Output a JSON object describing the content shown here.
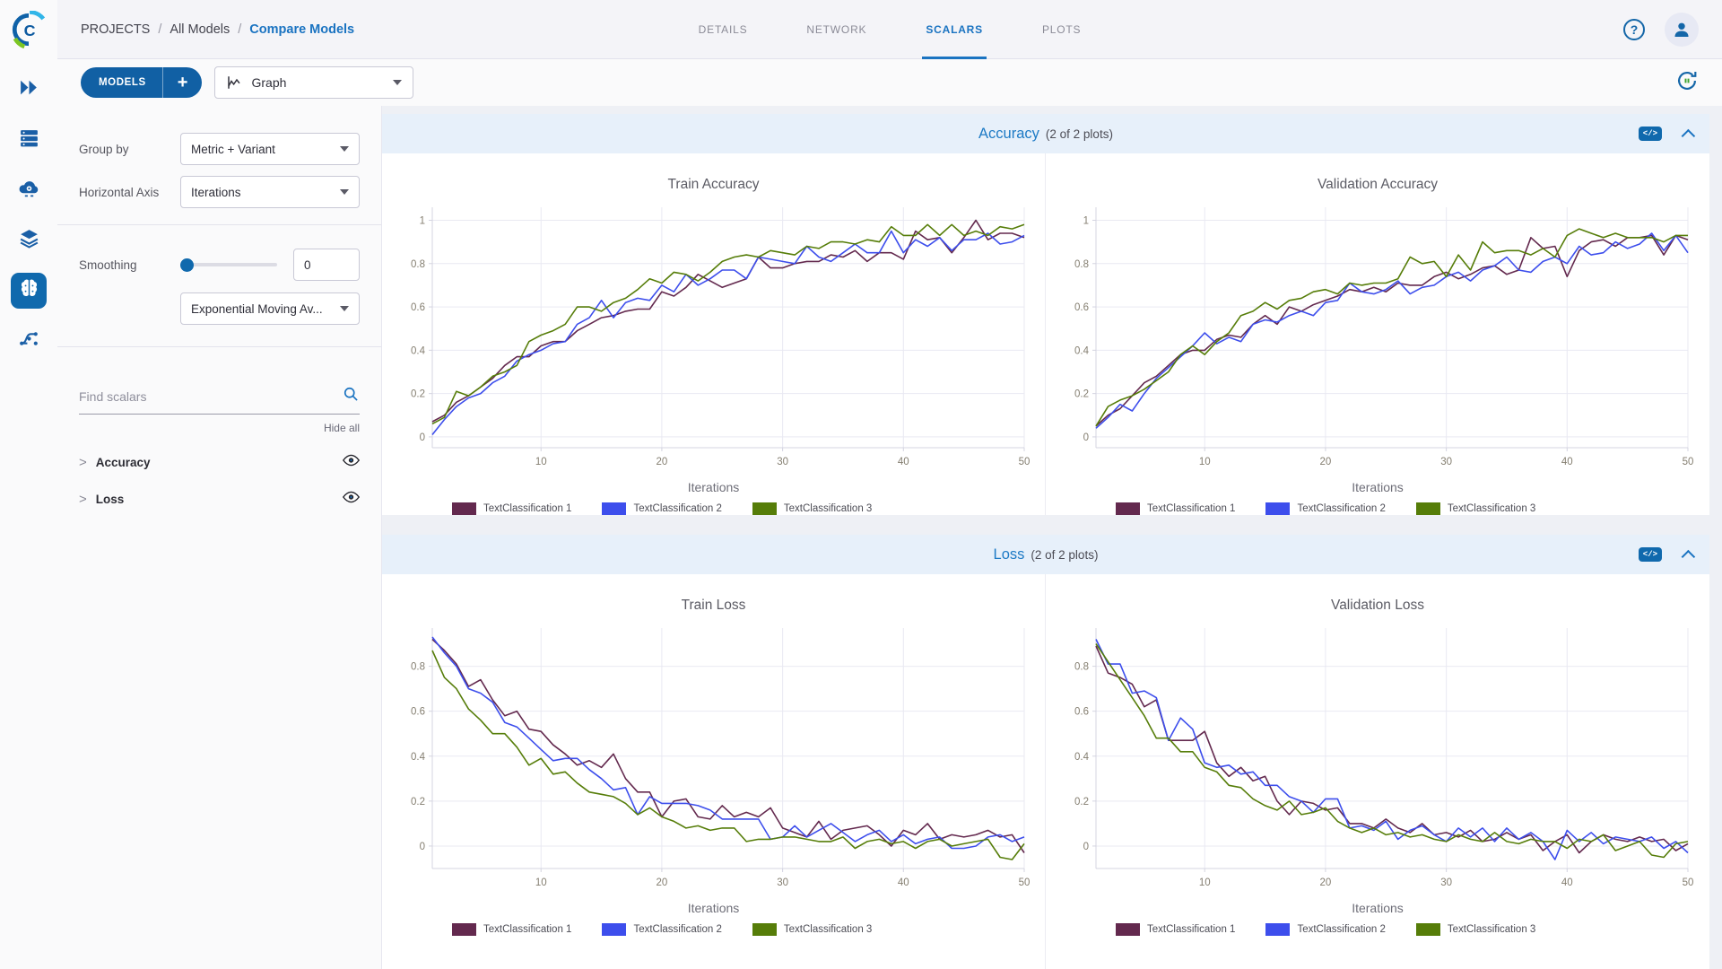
{
  "topbar": {
    "breadcrumb": [
      "PROJECTS",
      "All Models",
      "Compare Models"
    ],
    "separator": "/",
    "tabs": [
      {
        "label": "DETAILS"
      },
      {
        "label": "NETWORK"
      },
      {
        "label": "SCALARS"
      },
      {
        "label": "PLOTS"
      }
    ],
    "help_glyph": "?"
  },
  "toolbar": {
    "models_button": "MODELS",
    "add_button": "+",
    "view_select": "Graph"
  },
  "controls": {
    "group_by_label": "Group by",
    "group_by_value": "Metric + Variant",
    "horizontal_axis_label": "Horizontal Axis",
    "horizontal_axis_value": "Iterations",
    "smoothing_label": "Smoothing",
    "smoothing_value": "0",
    "smoothing_type_value": "Exponential Moving Av...",
    "find_scalars_placeholder": "Find scalars",
    "hide_all_label": "Hide all",
    "expander_glyph": ">",
    "scalar_groups": [
      {
        "label": "Accuracy"
      },
      {
        "label": "Loss"
      }
    ]
  },
  "sections": [
    {
      "title": "Accuracy",
      "count": "(2 of 2 plots)",
      "code_icon_glyph": "</>"
    },
    {
      "title": "Loss",
      "count": "(2 of 2 plots)",
      "code_icon_glyph": "</>"
    }
  ],
  "colors": {
    "TextClassification 1": "#63294e",
    "TextClassification 2": "#3d4eec",
    "TextClassification 3": "#567d09",
    "accent": "#1a73c1"
  },
  "chart_data": [
    {
      "type": "line",
      "title": "Train Accuracy",
      "xlabel": "Iterations",
      "xlim": [
        1,
        50
      ],
      "ylim": [
        -0.05,
        1.06
      ],
      "x_ticks": [
        10,
        20,
        30,
        40,
        50
      ],
      "y_ticks": [
        0,
        0.2,
        0.4,
        0.6,
        0.8,
        1
      ],
      "grid": true,
      "legend_position": "bottom",
      "series": [
        {
          "name": "TextClassification 1",
          "values": [
            0.07,
            0.1,
            0.16,
            0.19,
            0.23,
            0.27,
            0.33,
            0.37,
            0.37,
            0.42,
            0.44,
            0.44,
            0.49,
            0.52,
            0.55,
            0.56,
            0.58,
            0.59,
            0.59,
            0.67,
            0.65,
            0.69,
            0.75,
            0.72,
            0.69,
            0.71,
            0.73,
            0.83,
            0.78,
            0.78,
            0.8,
            0.81,
            0.81,
            0.84,
            0.83,
            0.86,
            0.81,
            0.85,
            0.85,
            0.82,
            0.95,
            0.91,
            0.92,
            0.85,
            0.92,
            1.0,
            0.91,
            0.94,
            0.94,
            0.92
          ]
        },
        {
          "name": "TextClassification 2",
          "values": [
            0.01,
            0.08,
            0.14,
            0.18,
            0.2,
            0.25,
            0.28,
            0.35,
            0.38,
            0.4,
            0.43,
            0.44,
            0.52,
            0.55,
            0.63,
            0.55,
            0.62,
            0.64,
            0.63,
            0.7,
            0.67,
            0.75,
            0.7,
            0.73,
            0.77,
            0.77,
            0.73,
            0.83,
            0.82,
            0.81,
            0.8,
            0.88,
            0.83,
            0.81,
            0.85,
            0.89,
            0.85,
            0.85,
            0.95,
            0.85,
            0.91,
            0.88,
            0.92,
            0.86,
            0.91,
            0.91,
            0.94,
            0.89,
            0.9,
            0.93
          ]
        },
        {
          "name": "TextClassification 3",
          "values": [
            0.06,
            0.09,
            0.21,
            0.19,
            0.23,
            0.28,
            0.3,
            0.33,
            0.44,
            0.47,
            0.49,
            0.52,
            0.6,
            0.6,
            0.58,
            0.62,
            0.64,
            0.68,
            0.73,
            0.71,
            0.76,
            0.75,
            0.72,
            0.76,
            0.81,
            0.83,
            0.84,
            0.83,
            0.86,
            0.85,
            0.84,
            0.88,
            0.87,
            0.9,
            0.9,
            0.89,
            0.91,
            0.9,
            0.97,
            0.93,
            0.93,
            0.98,
            0.93,
            0.98,
            0.93,
            0.95,
            0.93,
            0.97,
            0.96,
            0.98
          ]
        }
      ]
    },
    {
      "type": "line",
      "title": "Validation Accuracy",
      "xlabel": "Iterations",
      "xlim": [
        1,
        50
      ],
      "ylim": [
        -0.05,
        1.06
      ],
      "x_ticks": [
        10,
        20,
        30,
        40,
        50
      ],
      "y_ticks": [
        0,
        0.2,
        0.4,
        0.6,
        0.8,
        1
      ],
      "grid": true,
      "legend_position": "bottom",
      "series": [
        {
          "name": "TextClassification 1",
          "values": [
            0.05,
            0.1,
            0.13,
            0.19,
            0.25,
            0.28,
            0.33,
            0.38,
            0.4,
            0.4,
            0.45,
            0.47,
            0.46,
            0.52,
            0.56,
            0.52,
            0.6,
            0.58,
            0.61,
            0.63,
            0.65,
            0.68,
            0.67,
            0.69,
            0.67,
            0.71,
            0.7,
            0.7,
            0.74,
            0.76,
            0.73,
            0.75,
            0.78,
            0.79,
            0.75,
            0.77,
            0.92,
            0.87,
            0.88,
            0.74,
            0.86,
            0.9,
            0.91,
            0.88,
            0.92,
            0.92,
            0.93,
            0.84,
            0.93,
            0.91
          ]
        },
        {
          "name": "TextClassification 2",
          "values": [
            0.04,
            0.09,
            0.15,
            0.12,
            0.2,
            0.27,
            0.32,
            0.37,
            0.42,
            0.48,
            0.43,
            0.46,
            0.44,
            0.52,
            0.54,
            0.53,
            0.56,
            0.58,
            0.56,
            0.62,
            0.63,
            0.71,
            0.67,
            0.66,
            0.68,
            0.72,
            0.66,
            0.69,
            0.7,
            0.74,
            0.76,
            0.72,
            0.77,
            0.79,
            0.83,
            0.77,
            0.76,
            0.81,
            0.83,
            0.8,
            0.88,
            0.84,
            0.85,
            0.9,
            0.87,
            0.89,
            0.94,
            0.86,
            0.93,
            0.85
          ]
        },
        {
          "name": "TextClassification 3",
          "values": [
            0.05,
            0.14,
            0.17,
            0.19,
            0.22,
            0.26,
            0.3,
            0.38,
            0.42,
            0.38,
            0.44,
            0.48,
            0.56,
            0.58,
            0.62,
            0.59,
            0.63,
            0.64,
            0.67,
            0.68,
            0.66,
            0.71,
            0.7,
            0.71,
            0.71,
            0.73,
            0.83,
            0.8,
            0.81,
            0.74,
            0.84,
            0.77,
            0.9,
            0.85,
            0.86,
            0.86,
            0.84,
            0.87,
            0.83,
            0.93,
            0.96,
            0.94,
            0.92,
            0.94,
            0.92,
            0.92,
            0.92,
            0.9,
            0.93,
            0.93
          ]
        }
      ]
    },
    {
      "type": "line",
      "title": "Train Loss",
      "xlabel": "Iterations",
      "xlim": [
        1,
        50
      ],
      "ylim": [
        -0.1,
        0.97
      ],
      "x_ticks": [
        10,
        20,
        30,
        40,
        50
      ],
      "y_ticks": [
        0,
        0.2,
        0.4,
        0.6,
        0.8
      ],
      "grid": true,
      "legend_position": "bottom",
      "series": [
        {
          "name": "TextClassification 1",
          "values": [
            0.92,
            0.87,
            0.81,
            0.71,
            0.74,
            0.65,
            0.58,
            0.6,
            0.52,
            0.51,
            0.45,
            0.41,
            0.36,
            0.38,
            0.35,
            0.41,
            0.3,
            0.24,
            0.24,
            0.13,
            0.2,
            0.21,
            0.13,
            0.12,
            0.18,
            0.13,
            0.15,
            0.13,
            0.17,
            0.08,
            0.06,
            0.04,
            0.11,
            0.03,
            0.07,
            0.08,
            0.09,
            0.05,
            0.0,
            0.07,
            0.05,
            0.1,
            0.03,
            0.05,
            0.04,
            0.05,
            0.07,
            0.04,
            0.05,
            -0.03
          ]
        },
        {
          "name": "TextClassification 2",
          "values": [
            0.93,
            0.86,
            0.8,
            0.7,
            0.68,
            0.64,
            0.55,
            0.53,
            0.48,
            0.43,
            0.38,
            0.39,
            0.39,
            0.34,
            0.3,
            0.25,
            0.26,
            0.14,
            0.22,
            0.19,
            0.19,
            0.19,
            0.18,
            0.16,
            0.12,
            0.12,
            0.12,
            0.12,
            0.03,
            0.04,
            0.09,
            0.04,
            0.07,
            0.1,
            0.06,
            0.02,
            0.05,
            0.07,
            0.02,
            0.05,
            0.01,
            0.03,
            0.04,
            -0.01,
            -0.01,
            0.0,
            0.04,
            0.05,
            0.02,
            0.04
          ]
        },
        {
          "name": "TextClassification 3",
          "values": [
            0.87,
            0.75,
            0.7,
            0.61,
            0.56,
            0.5,
            0.5,
            0.44,
            0.36,
            0.39,
            0.32,
            0.33,
            0.28,
            0.24,
            0.23,
            0.22,
            0.19,
            0.14,
            0.17,
            0.13,
            0.11,
            0.08,
            0.09,
            0.07,
            0.08,
            0.08,
            0.02,
            0.03,
            0.03,
            0.04,
            0.04,
            0.03,
            0.02,
            0.02,
            0.04,
            -0.01,
            0.02,
            0.03,
            0.01,
            0.02,
            -0.01,
            0.02,
            0.03,
            0.0,
            0.01,
            0.02,
            0.03,
            -0.05,
            -0.06,
            0.01
          ]
        }
      ]
    },
    {
      "type": "line",
      "title": "Validation Loss",
      "xlabel": "Iterations",
      "xlim": [
        1,
        50
      ],
      "ylim": [
        -0.1,
        0.97
      ],
      "x_ticks": [
        10,
        20,
        30,
        40,
        50
      ],
      "y_ticks": [
        0,
        0.2,
        0.4,
        0.6,
        0.8
      ],
      "grid": true,
      "legend_position": "bottom",
      "series": [
        {
          "name": "TextClassification 1",
          "values": [
            0.89,
            0.77,
            0.75,
            0.72,
            0.62,
            0.65,
            0.47,
            0.47,
            0.47,
            0.51,
            0.37,
            0.31,
            0.35,
            0.29,
            0.31,
            0.2,
            0.14,
            0.2,
            0.19,
            0.16,
            0.17,
            0.1,
            0.1,
            0.08,
            0.12,
            0.08,
            0.06,
            0.1,
            0.05,
            0.06,
            0.04,
            0.07,
            0.02,
            0.03,
            0.06,
            0.03,
            0.05,
            -0.02,
            0.02,
            0.05,
            -0.03,
            0.02,
            0.05,
            0.03,
            0.02,
            0.04,
            0.02,
            0.03,
            -0.02,
            0.01
          ]
        },
        {
          "name": "TextClassification 2",
          "values": [
            0.92,
            0.81,
            0.81,
            0.68,
            0.69,
            0.66,
            0.47,
            0.57,
            0.52,
            0.37,
            0.35,
            0.36,
            0.32,
            0.33,
            0.27,
            0.27,
            0.22,
            0.2,
            0.15,
            0.21,
            0.21,
            0.08,
            0.09,
            0.07,
            0.11,
            0.03,
            0.07,
            0.09,
            0.05,
            0.02,
            0.08,
            0.04,
            0.08,
            0.02,
            0.08,
            0.03,
            0.06,
            0.02,
            -0.06,
            0.07,
            0.02,
            0.06,
            0.01,
            0.04,
            0.03,
            0.02,
            0.04,
            -0.01,
            0.02,
            -0.03
          ]
        },
        {
          "name": "TextClassification 3",
          "values": [
            0.9,
            0.82,
            0.74,
            0.66,
            0.58,
            0.48,
            0.48,
            0.42,
            0.42,
            0.35,
            0.33,
            0.27,
            0.26,
            0.21,
            0.18,
            0.16,
            0.2,
            0.14,
            0.15,
            0.17,
            0.11,
            0.08,
            0.06,
            0.08,
            0.05,
            0.06,
            0.04,
            0.05,
            0.03,
            0.02,
            0.05,
            0.03,
            0.02,
            0.06,
            0.02,
            0.01,
            0.03,
            0.02,
            0.02,
            -0.01,
            0.03,
            0.02,
            0.05,
            -0.02,
            0.0,
            0.02,
            -0.04,
            -0.05,
            0.01,
            0.02
          ]
        }
      ]
    }
  ]
}
